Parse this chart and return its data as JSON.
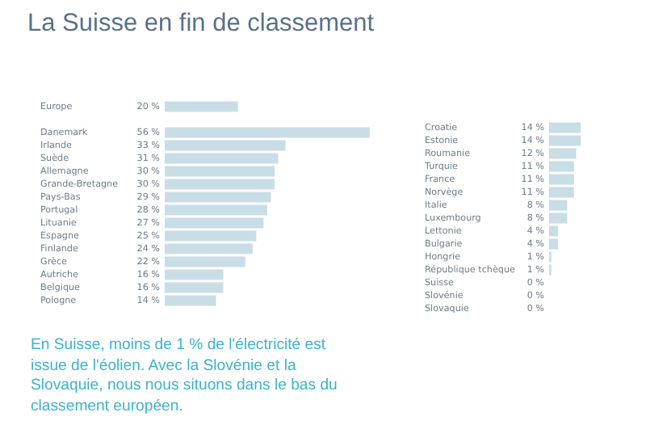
{
  "chart_data": [
    {
      "type": "bar",
      "orientation": "horizontal",
      "title": "La Suisse en fin de classement",
      "categories": [
        "Europe",
        null,
        "Danemark",
        "Irlande",
        "Suède",
        "Allemagne",
        "Grande-Bretagne",
        "Pays-Bas",
        "Portugal",
        "Lituanie",
        "Espagne",
        "Finlande",
        "Grèce",
        "Autriche",
        "Belgique",
        "Pologne"
      ],
      "values": [
        20,
        null,
        56,
        33,
        31,
        30,
        30,
        29,
        28,
        27,
        25,
        24,
        22,
        16,
        16,
        14
      ],
      "value_labels": [
        "20 %",
        null,
        "56 %",
        "33 %",
        "31 %",
        "30 %",
        "30 %",
        "29 %",
        "28 %",
        "27 %",
        "25 %",
        "24 %",
        "22 %",
        "16 %",
        "16 %",
        "14 %"
      ],
      "color": "#c9dde6",
      "grid": false,
      "tick_labels": false,
      "annotations": [
        "En Suisse, moins de 1 % de l'électricité est issue de l'éolien. Avec la Slovénie et la Slovaquie, nous nous situons dans le bas du classement européen."
      ]
    },
    {
      "type": "bar",
      "orientation": "horizontal",
      "categories": [
        "Croatie",
        "Estonie",
        "Roumanie",
        "Turquie",
        "France",
        "Norvège",
        "Italie",
        "Luxembourg",
        "Lettonie",
        "Bulgarie",
        "Hongrie",
        "République tchèque",
        "Suisse",
        "Slovénie",
        "Slovaquie"
      ],
      "values": [
        14,
        14,
        12,
        11,
        11,
        11,
        8,
        8,
        4,
        4,
        1,
        1,
        0,
        0,
        0
      ],
      "value_labels": [
        "14 %",
        "14 %",
        "12 %",
        "11 %",
        "11 %",
        "11 %",
        "8 %",
        "8 %",
        "4 %",
        "4 %",
        "1 %",
        "1 %",
        "0 %",
        "0 %",
        "0 %"
      ],
      "color": "#c9dde6",
      "grid": false,
      "tick_labels": false
    }
  ]
}
